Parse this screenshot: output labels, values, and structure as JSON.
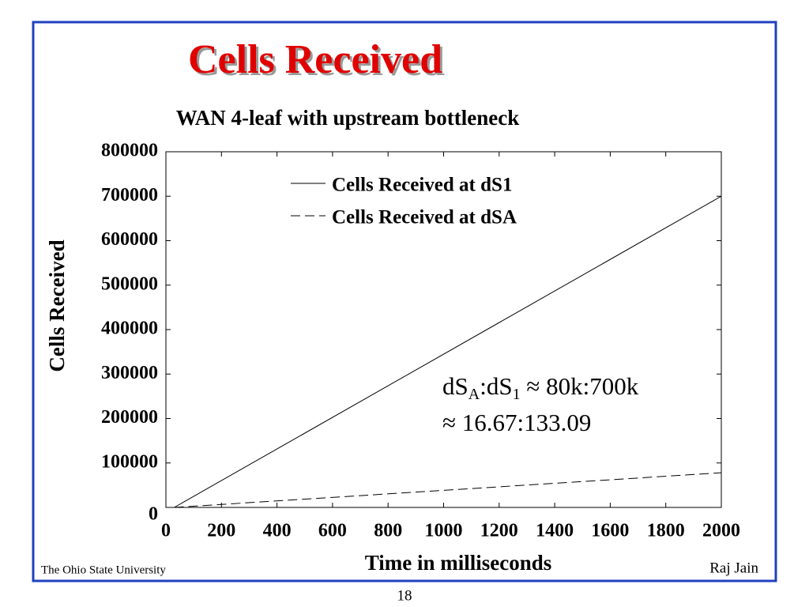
{
  "header": {
    "title": "Cells Received",
    "footer_left": "The Ohio State University",
    "footer_right": "Raj Jain",
    "page_number": "18"
  },
  "chart_data": {
    "type": "line",
    "title": "WAN 4-leaf with upstream bottleneck",
    "x_label": "Time in milliseconds",
    "y_label": "Cells Received",
    "x": [
      30,
      2000
    ],
    "series": [
      {
        "name": "Cells Received at dS1",
        "color": "#000000",
        "dash": "solid",
        "values": [
          0,
          700000
        ]
      },
      {
        "name": "Cells Received at dSA",
        "color": "#000000",
        "dash": "dashed",
        "values": [
          0,
          78000
        ]
      }
    ],
    "xlim": [
      0,
      2000
    ],
    "xticks": [
      0,
      200,
      400,
      600,
      800,
      1000,
      1200,
      1400,
      1600,
      1800,
      2000
    ],
    "ylim": [
      0,
      800000
    ],
    "yticks": [
      0,
      100000,
      200000,
      300000,
      400000,
      500000,
      600000,
      700000,
      800000
    ],
    "legend": "upper center",
    "annotation": {
      "line1": [
        "dS",
        "A",
        ":dS",
        "1",
        " ≈ 80k:700k"
      ],
      "line2": "≈ 16.67:133.09"
    }
  }
}
